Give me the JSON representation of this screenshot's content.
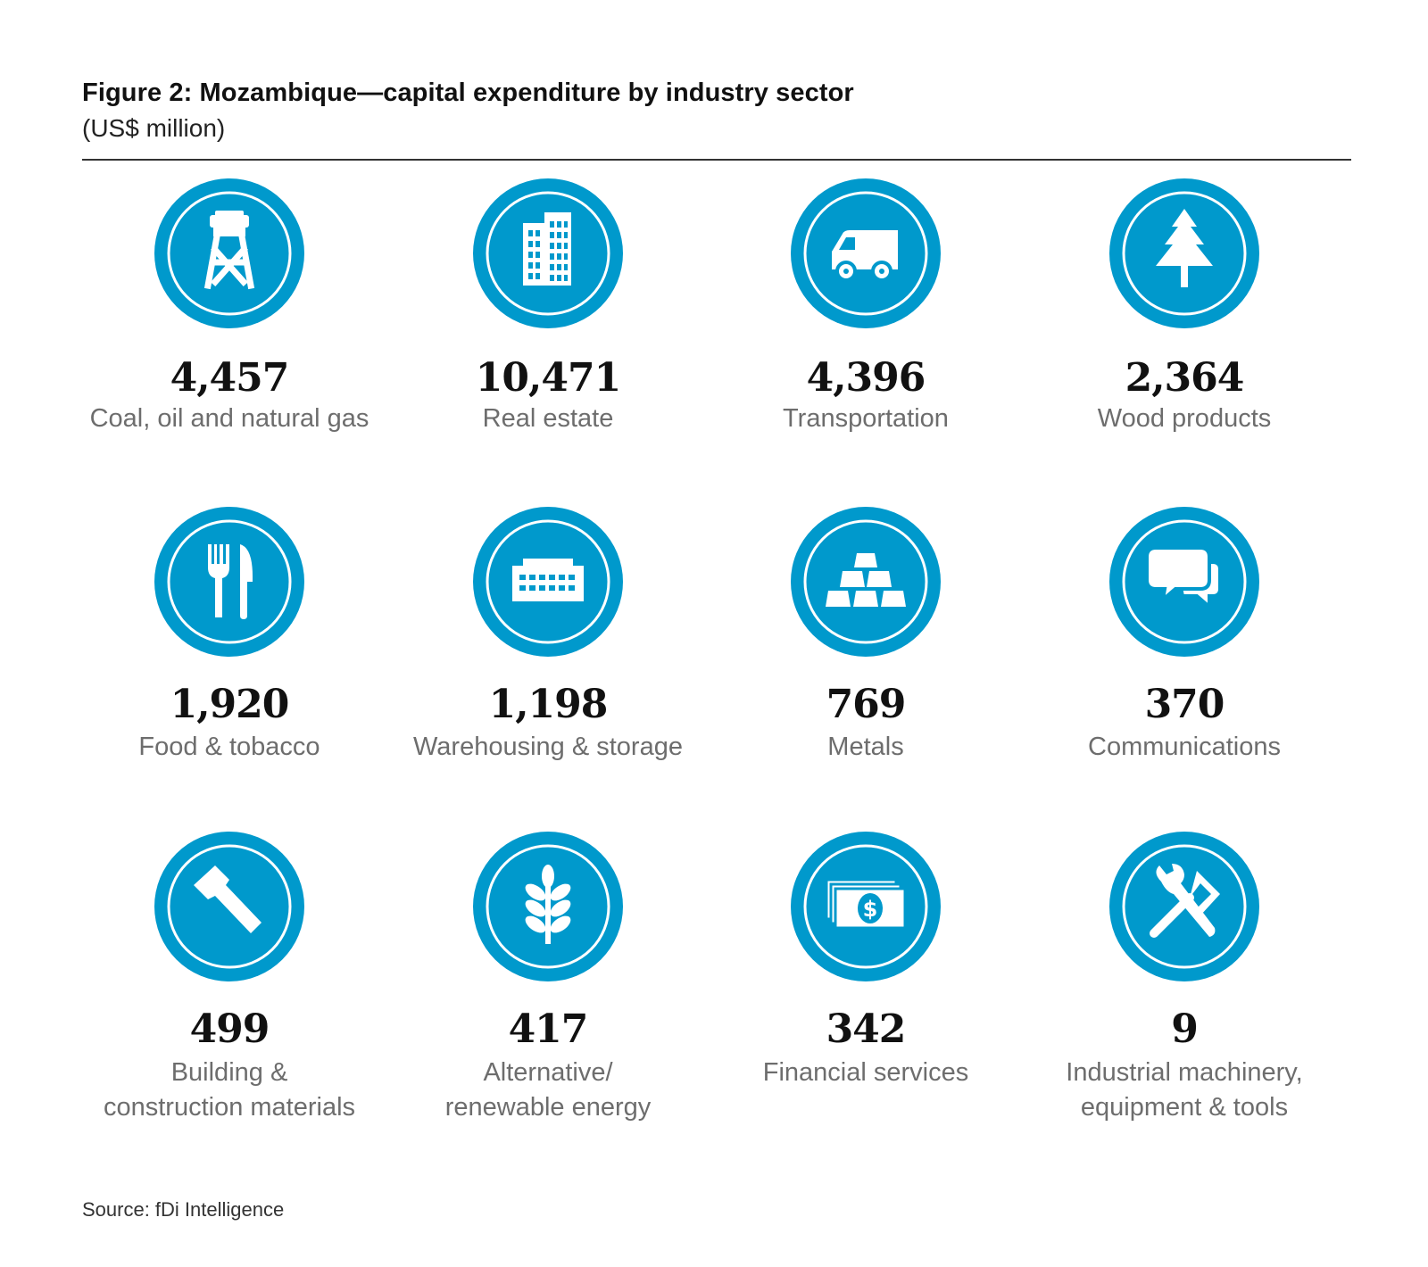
{
  "title": "Figure 2:  Mozambique—capital expenditure by industry sector",
  "subtitle": "(US$ million)",
  "source": "Source: fDi Intelligence",
  "colors": {
    "accent": "#0099cc",
    "value_text": "#111111",
    "label_text": "#6d6d6d"
  },
  "chart_data": {
    "type": "table",
    "title": "Mozambique—capital expenditure by industry sector",
    "unit": "US$ million",
    "categories": [
      "Coal, oil and natural gas",
      "Real estate",
      "Transportation",
      "Wood products",
      "Food & tobacco",
      "Warehousing & storage",
      "Metals",
      "Communications",
      "Building & construction materials",
      "Alternative/ renewable energy",
      "Financial services",
      "Industrial machinery, equipment & tools"
    ],
    "values": [
      4457,
      10471,
      4396,
      2364,
      1920,
      1198,
      769,
      370,
      499,
      417,
      342,
      9
    ]
  },
  "sectors": [
    {
      "value": "4,457",
      "label": "Coal, oil and natural gas",
      "icon": "oil-derrick-icon"
    },
    {
      "value": "10,471",
      "label": "Real estate",
      "icon": "building-icon"
    },
    {
      "value": "4,396",
      "label": "Transportation",
      "icon": "truck-icon"
    },
    {
      "value": "2,364",
      "label": "Wood products",
      "icon": "tree-icon"
    },
    {
      "value": "1,920",
      "label": "Food & tobacco",
      "icon": "fork-knife-icon"
    },
    {
      "value": "1,198",
      "label": "Warehousing & storage",
      "icon": "warehouse-icon"
    },
    {
      "value": "769",
      "label": "Metals",
      "icon": "gold-bars-icon"
    },
    {
      "value": "370",
      "label": "Communications",
      "icon": "speech-bubbles-icon"
    },
    {
      "value": "499",
      "label": "Building &\nconstruction materials",
      "icon": "hammer-icon"
    },
    {
      "value": "417",
      "label": "Alternative/\nrenewable energy",
      "icon": "wheat-icon"
    },
    {
      "value": "342",
      "label": "Financial services",
      "icon": "money-icon"
    },
    {
      "value": "9",
      "label": "Industrial machinery,\nequipment & tools",
      "icon": "tools-icon"
    }
  ]
}
